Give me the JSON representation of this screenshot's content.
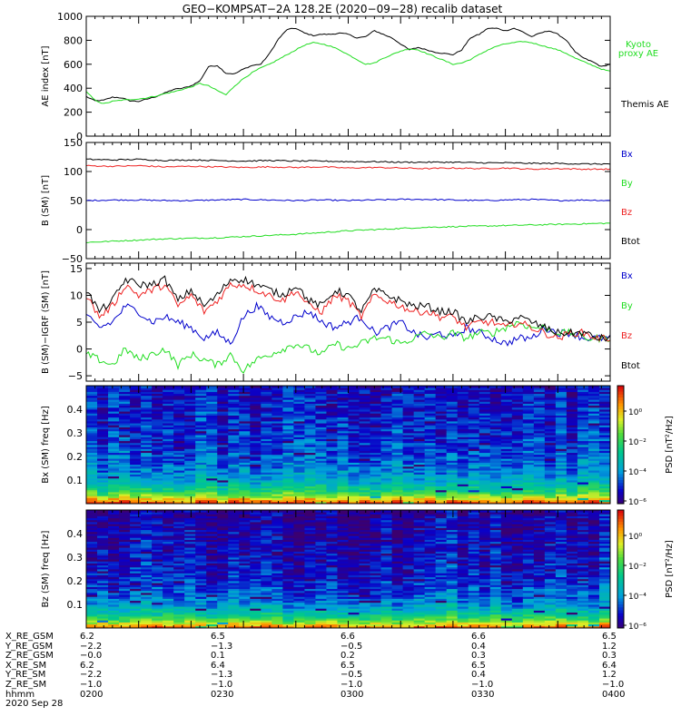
{
  "title": "GEO−KOMPSAT−2A 128.2E (2020−09−28) recalib dataset",
  "colors": {
    "black": "#000000",
    "green": "#22dd22",
    "blue": "#0000cc",
    "red": "#ee2222"
  },
  "chart_data": [
    {
      "type": "line",
      "ylabel": "AE index [nT]",
      "ylim": [
        0,
        1000
      ],
      "yticks": [
        "0",
        "200",
        "400",
        "600",
        "800",
        "1000"
      ],
      "x": [
        0,
        2,
        4,
        6,
        8,
        10,
        12,
        14,
        16,
        18,
        20,
        22,
        24,
        26,
        28,
        30,
        32,
        34,
        36,
        38,
        40,
        42,
        44,
        46,
        48,
        50,
        52,
        54,
        56,
        58,
        60,
        62,
        64,
        66,
        68,
        70,
        72,
        74,
        76,
        78,
        80,
        82,
        84,
        86,
        88,
        90,
        92,
        94,
        96,
        98,
        100,
        102,
        104,
        106,
        108,
        110,
        112,
        114,
        116,
        118,
        120
      ],
      "series": [
        {
          "name": "Themis AE",
          "color": "#000000",
          "values": [
            330,
            295,
            300,
            325,
            320,
            295,
            290,
            310,
            330,
            360,
            390,
            400,
            420,
            460,
            580,
            590,
            525,
            520,
            560,
            590,
            600,
            690,
            810,
            890,
            900,
            860,
            840,
            850,
            850,
            860,
            850,
            820,
            830,
            880,
            850,
            820,
            770,
            720,
            740,
            720,
            700,
            690,
            680,
            720,
            820,
            850,
            900,
            900,
            880,
            900,
            870,
            830,
            860,
            880,
            850,
            800,
            700,
            650,
            620,
            580,
            600
          ]
        },
        {
          "name": "Kyoto proxy AE",
          "color": "#22dd22",
          "values": [
            370,
            300,
            270,
            290,
            300,
            305,
            310,
            320,
            335,
            355,
            370,
            390,
            410,
            440,
            420,
            380,
            345,
            420,
            480,
            530,
            570,
            600,
            640,
            680,
            720,
            760,
            780,
            770,
            750,
            720,
            680,
            640,
            600,
            610,
            650,
            680,
            710,
            730,
            720,
            690,
            660,
            630,
            600,
            610,
            640,
            680,
            720,
            750,
            770,
            780,
            790,
            780,
            760,
            740,
            720,
            690,
            650,
            620,
            590,
            560,
            540
          ]
        }
      ]
    },
    {
      "type": "line",
      "ylabel": "B (SM) [nT]",
      "ylim": [
        -50,
        150
      ],
      "yticks": [
        "−50",
        "0",
        "50",
        "100",
        "150"
      ],
      "x": [
        0,
        6,
        12,
        18,
        24,
        30,
        36,
        42,
        48,
        54,
        60,
        66,
        72,
        78,
        84,
        90,
        96,
        102,
        108,
        114,
        120
      ],
      "series": [
        {
          "name": "Bx",
          "color": "#0000cc",
          "values": [
            50,
            51,
            51,
            50,
            50,
            51,
            52,
            51,
            50,
            51,
            50,
            51,
            52,
            52,
            51,
            50,
            51,
            52,
            50,
            51,
            50
          ]
        },
        {
          "name": "By",
          "color": "#22dd22",
          "values": [
            -22,
            -20,
            -18,
            -16,
            -15,
            -14,
            -12,
            -10,
            -8,
            -5,
            -2,
            0,
            2,
            4,
            5,
            6,
            7,
            8,
            9,
            10,
            11
          ]
        },
        {
          "name": "Bz",
          "color": "#ee2222",
          "values": [
            110,
            109,
            110,
            108,
            109,
            108,
            107,
            108,
            107,
            108,
            106,
            107,
            106,
            105,
            106,
            105,
            106,
            104,
            105,
            104,
            104
          ]
        },
        {
          "name": "Btot",
          "color": "#000000",
          "values": [
            121,
            120,
            121,
            119,
            120,
            119,
            118,
            119,
            118,
            118,
            117,
            117,
            116,
            116,
            116,
            115,
            115,
            114,
            114,
            113,
            113
          ]
        }
      ]
    },
    {
      "type": "line",
      "ylabel": "B (SM)−IGRF (SM) [nT]",
      "ylim": [
        -6,
        16
      ],
      "yticks": [
        "−5",
        "0",
        "5",
        "10",
        "15"
      ],
      "x": [
        0,
        3,
        6,
        9,
        12,
        15,
        18,
        21,
        24,
        27,
        30,
        33,
        36,
        39,
        42,
        45,
        48,
        51,
        54,
        57,
        60,
        63,
        66,
        69,
        72,
        75,
        78,
        81,
        84,
        87,
        90,
        93,
        96,
        99,
        102,
        105,
        108,
        111,
        114,
        117,
        120
      ],
      "series": [
        {
          "name": "Bx",
          "color": "#0000cc",
          "values": [
            6,
            4,
            5,
            8,
            7,
            5,
            6,
            5,
            4,
            2,
            3,
            1,
            6,
            8,
            6,
            5,
            6,
            7,
            5,
            4,
            5,
            6,
            3,
            4,
            5,
            3,
            2,
            3,
            2,
            4,
            3,
            2,
            1,
            2,
            2,
            4,
            3,
            3,
            2,
            2,
            2
          ]
        },
        {
          "name": "By",
          "color": "#22dd22",
          "values": [
            -1,
            -2,
            -3,
            0,
            -2,
            -1,
            0,
            -3,
            -1,
            -2,
            -3,
            -1,
            -4,
            -2,
            -1,
            0,
            1,
            0,
            -1,
            1,
            0,
            1,
            2,
            2,
            1,
            2,
            3,
            2,
            3,
            2,
            3,
            3,
            4,
            5,
            4,
            4,
            3,
            3,
            2,
            2,
            2
          ]
        },
        {
          "name": "Bz",
          "color": "#ee2222",
          "values": [
            10,
            6,
            8,
            12,
            10,
            11,
            12,
            8,
            10,
            7,
            9,
            12,
            12,
            11,
            10,
            9,
            11,
            8,
            7,
            10,
            9,
            6,
            10,
            9,
            8,
            7,
            7,
            6,
            6,
            4,
            5,
            5,
            4,
            5,
            4,
            3,
            2,
            3,
            3,
            2,
            2
          ]
        },
        {
          "name": "Btot",
          "color": "#000000",
          "values": [
            11,
            7,
            9,
            13,
            12,
            12,
            13,
            9,
            11,
            8,
            10,
            13,
            13,
            12,
            11,
            10,
            12,
            9,
            8,
            11,
            10,
            7,
            11,
            10,
            9,
            8,
            8,
            7,
            7,
            5,
            6,
            6,
            5,
            6,
            5,
            4,
            3,
            3,
            3,
            2,
            2
          ]
        }
      ]
    },
    {
      "type": "heatmap",
      "ylabel": "Bx (SM) freq [Hz]",
      "yticks": [
        "0.1",
        "0.2",
        "0.3",
        "0.4"
      ],
      "ylim": [
        0,
        0.5
      ],
      "colorbar_label": "PSD [nT²/Hz]",
      "colorbar_ticks": [
        "10⁰",
        "10⁻²",
        "10⁻⁴",
        "10⁻⁶"
      ]
    },
    {
      "type": "heatmap",
      "ylabel": "Bz (SM) freq [Hz]",
      "yticks": [
        "0.1",
        "0.2",
        "0.3",
        "0.4"
      ],
      "ylim": [
        0,
        0.5
      ],
      "colorbar_label": "PSD [nT²/Hz]",
      "colorbar_ticks": [
        "10⁰",
        "10⁻²",
        "10⁻⁴",
        "10⁻⁶"
      ]
    }
  ],
  "legends": {
    "ae": [
      {
        "text": "Kyoto",
        "color": "#22dd22"
      },
      {
        "text": "proxy AE",
        "color": "#22dd22"
      },
      {
        "text": "Themis AE",
        "color": "#000000"
      }
    ],
    "b": [
      {
        "text": "Bx",
        "color": "#0000cc"
      },
      {
        "text": "By",
        "color": "#22dd22"
      },
      {
        "text": "Bz",
        "color": "#ee2222"
      },
      {
        "text": "Btot",
        "color": "#000000"
      }
    ],
    "db": [
      {
        "text": "Bx",
        "color": "#0000cc"
      },
      {
        "text": "By",
        "color": "#22dd22"
      },
      {
        "text": "Bz",
        "color": "#ee2222"
      },
      {
        "text": "Btot",
        "color": "#000000"
      }
    ]
  },
  "ephemeris": {
    "labels": [
      "X_RE_GSM",
      "Y_RE_GSM",
      "Z_RE_GSM",
      "X_RE_SM",
      "Y_RE_SM",
      "Z_RE_SM",
      "hhmm",
      "2020 Sep 28"
    ],
    "columns": [
      [
        "6.2",
        "−2.2",
        "−0.0",
        "6.2",
        "−2.2",
        "−1.0",
        "0200"
      ],
      [
        "6.5",
        "−1.3",
        "0.1",
        "6.4",
        "−1.3",
        "−1.0",
        "0230"
      ],
      [
        "6.6",
        "−0.5",
        "0.2",
        "6.5",
        "−0.5",
        "−1.0",
        "0300"
      ],
      [
        "6.6",
        "0.4",
        "0.3",
        "6.5",
        "0.4",
        "−1.0",
        "0330"
      ],
      [
        "6.5",
        "1.2",
        "0.3",
        "6.4",
        "1.2",
        "−1.0",
        "0400"
      ]
    ]
  }
}
